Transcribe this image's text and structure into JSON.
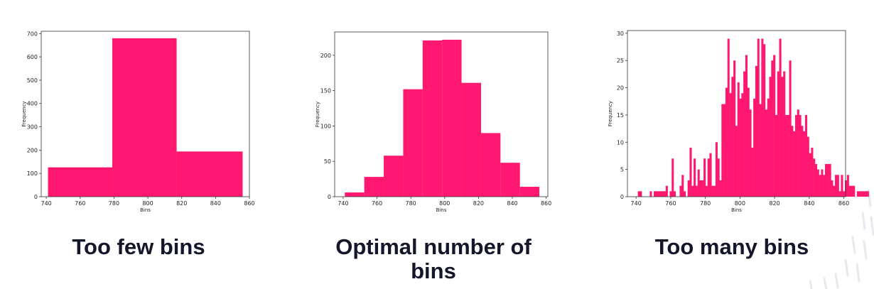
{
  "colors": {
    "bar": "#FF1770",
    "axis": "#333333",
    "caption": "#14162A",
    "decor": "#E6E9F0"
  },
  "captions": {
    "too_few": "Too few bins",
    "optimal_line1": "Optimal number of",
    "optimal_line2": "bins",
    "too_many": "Too many bins"
  },
  "chart_data": [
    {
      "type": "bar",
      "xlabel": "Bins",
      "ylabel": "Frequency",
      "xlim": [
        737,
        860
      ],
      "ylim": [
        0,
        710
      ],
      "xticks": [
        740,
        760,
        780,
        800,
        820,
        840,
        860
      ],
      "yticks": [
        0,
        100,
        200,
        300,
        400,
        500,
        600,
        700
      ],
      "bin_edges": [
        741,
        779,
        817,
        856
      ],
      "values": [
        126,
        680,
        194
      ]
    },
    {
      "type": "bar",
      "xlabel": "Bins",
      "ylabel": "Frequency",
      "xlim": [
        735,
        861
      ],
      "ylim": [
        0,
        233
      ],
      "xticks": [
        740,
        760,
        780,
        800,
        820,
        860
      ],
      "extra_tick_labels": [
        {
          "value": 840,
          "label": "840"
        }
      ],
      "yticks": [
        0,
        50,
        100,
        150,
        200
      ],
      "bin_edges": [
        741,
        752.5,
        764,
        775.5,
        787,
        798.5,
        810,
        821.5,
        833,
        844.5,
        856
      ],
      "values": [
        6,
        28,
        58,
        152,
        221,
        222,
        161,
        90,
        48,
        14
      ]
    },
    {
      "type": "bar",
      "xlabel": "Bins",
      "ylabel": "Frequency",
      "xlim": [
        735,
        861
      ],
      "ylim": [
        0,
        30.5
      ],
      "xticks": [
        740,
        760,
        780,
        800,
        820,
        840,
        860
      ],
      "yticks": [
        0,
        5,
        10,
        15,
        20,
        25,
        30
      ],
      "bin_edges_start": 741,
      "bin_width": 1.15,
      "values": [
        1,
        1,
        0,
        0,
        0,
        0,
        1,
        0,
        1,
        1,
        1,
        1,
        1,
        1,
        2,
        0,
        1,
        7,
        1,
        0,
        0,
        2,
        4,
        1,
        0,
        3,
        9,
        2,
        7,
        2,
        5,
        3,
        3,
        7,
        2,
        7,
        8,
        2,
        2,
        10,
        7,
        3,
        17,
        17,
        20,
        29,
        19,
        22,
        25,
        13,
        21,
        18,
        19,
        23,
        26,
        20,
        16,
        9,
        18,
        24,
        29,
        17,
        29,
        28,
        16,
        18,
        22,
        25,
        26,
        15,
        23,
        29,
        22,
        23,
        15,
        15,
        25,
        13,
        12,
        15,
        16,
        15,
        13,
        12,
        15,
        11,
        8,
        9,
        7,
        6,
        5,
        4,
        5,
        4,
        6,
        6,
        6,
        3,
        2,
        4,
        4,
        1,
        4,
        1,
        3,
        4,
        2,
        2,
        2,
        0,
        1,
        1,
        1,
        1,
        1,
        1
      ]
    }
  ]
}
